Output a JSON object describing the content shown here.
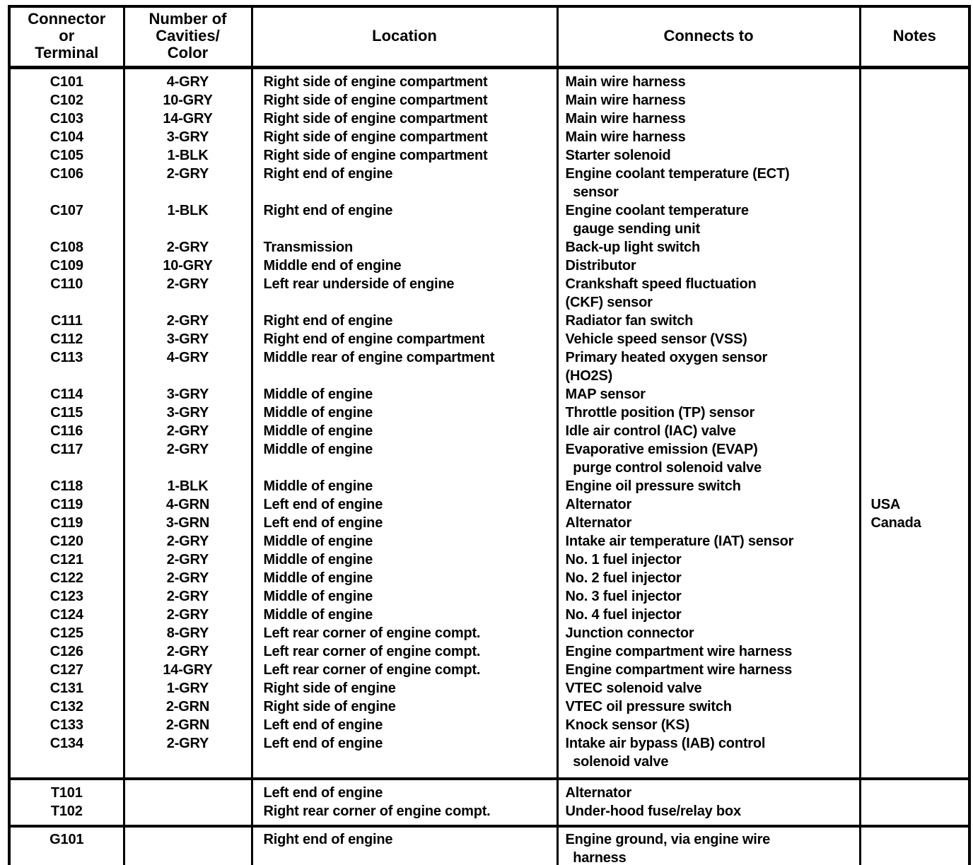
{
  "document": {
    "type": "connector-location-table"
  },
  "header": {
    "columns": [
      "Connector\nor\nTerminal",
      "Number of\nCavities/\nColor",
      "Location",
      "Connects to",
      "Notes"
    ]
  },
  "sections": [
    {
      "id": "connectors",
      "rows": [
        {
          "connector": "C101",
          "cavities": "4-GRY",
          "location": "Right side of engine compartment",
          "connects_to": "Main wire harness",
          "notes": ""
        },
        {
          "connector": "C102",
          "cavities": "10-GRY",
          "location": "Right side of engine compartment",
          "connects_to": "Main wire harness",
          "notes": ""
        },
        {
          "connector": "C103",
          "cavities": "14-GRY",
          "location": "Right side of engine compartment",
          "connects_to": "Main wire harness",
          "notes": ""
        },
        {
          "connector": "C104",
          "cavities": "3-GRY",
          "location": "Right side of engine compartment",
          "connects_to": "Main wire harness",
          "notes": ""
        },
        {
          "connector": "C105",
          "cavities": "1-BLK",
          "location": "Right side of engine compartment",
          "connects_to": "Starter solenoid",
          "notes": ""
        },
        {
          "connector": "C106",
          "cavities": "2-GRY",
          "location": "Right end of engine",
          "connects_to": "Engine coolant temperature (ECT)\n  sensor",
          "notes": ""
        },
        {
          "connector": "C107",
          "cavities": "1-BLK",
          "location": "Right end of engine",
          "connects_to": "Engine coolant temperature\n  gauge sending unit",
          "notes": ""
        },
        {
          "connector": "C108",
          "cavities": "2-GRY",
          "location": "Transmission",
          "connects_to": "Back-up light switch",
          "notes": ""
        },
        {
          "connector": "C109",
          "cavities": "10-GRY",
          "location": "Middle end of engine",
          "connects_to": "Distributor",
          "notes": ""
        },
        {
          "connector": "C110",
          "cavities": "2-GRY",
          "location": "Left rear underside of engine",
          "connects_to": "Crankshaft speed fluctuation\n(CKF) sensor",
          "notes": ""
        },
        {
          "connector": "C111",
          "cavities": "2-GRY",
          "location": "Right end of engine",
          "connects_to": "Radiator fan switch",
          "notes": ""
        },
        {
          "connector": "C112",
          "cavities": "3-GRY",
          "location": "Right end of engine compartment",
          "connects_to": "Vehicle speed sensor (VSS)",
          "notes": ""
        },
        {
          "connector": "C113",
          "cavities": "4-GRY",
          "location": "Middle rear of engine compartment",
          "connects_to": "Primary heated oxygen sensor\n(HO2S)",
          "notes": ""
        },
        {
          "connector": "C114",
          "cavities": "3-GRY",
          "location": "Middle of engine",
          "connects_to": "MAP sensor",
          "notes": ""
        },
        {
          "connector": "C115",
          "cavities": "3-GRY",
          "location": "Middle of engine",
          "connects_to": "Throttle position (TP) sensor",
          "notes": ""
        },
        {
          "connector": "C116",
          "cavities": "2-GRY",
          "location": "Middle of engine",
          "connects_to": "Idle air control (IAC) valve",
          "notes": ""
        },
        {
          "connector": "C117",
          "cavities": "2-GRY",
          "location": "Middle of engine",
          "connects_to": "Evaporative emission (EVAP)\n  purge control solenoid valve",
          "notes": ""
        },
        {
          "connector": "C118",
          "cavities": "1-BLK",
          "location": "Middle of engine",
          "connects_to": "Engine oil pressure switch",
          "notes": ""
        },
        {
          "connector": "C119",
          "cavities": "4-GRN",
          "location": "Left end of engine",
          "connects_to": "Alternator",
          "notes": "USA"
        },
        {
          "connector": "C119",
          "cavities": "3-GRN",
          "location": "Left end of engine",
          "connects_to": "Alternator",
          "notes": "Canada"
        },
        {
          "connector": "C120",
          "cavities": "2-GRY",
          "location": "Middle of engine",
          "connects_to": "Intake air temperature (IAT) sensor",
          "notes": ""
        },
        {
          "connector": "C121",
          "cavities": "2-GRY",
          "location": "Middle of engine",
          "connects_to": "No. 1 fuel injector",
          "notes": ""
        },
        {
          "connector": "C122",
          "cavities": "2-GRY",
          "location": "Middle of engine",
          "connects_to": "No. 2 fuel injector",
          "notes": ""
        },
        {
          "connector": "C123",
          "cavities": "2-GRY",
          "location": "Middle of engine",
          "connects_to": "No. 3 fuel injector",
          "notes": ""
        },
        {
          "connector": "C124",
          "cavities": "2-GRY",
          "location": "Middle of engine",
          "connects_to": "No. 4 fuel injector",
          "notes": ""
        },
        {
          "connector": "C125",
          "cavities": "8-GRY",
          "location": "Left rear corner of engine compt.",
          "connects_to": "Junction connector",
          "notes": ""
        },
        {
          "connector": "C126",
          "cavities": "2-GRY",
          "location": "Left rear corner of engine compt.",
          "connects_to": "Engine compartment wire harness",
          "notes": ""
        },
        {
          "connector": "C127",
          "cavities": "14-GRY",
          "location": "Left rear corner of engine compt.",
          "connects_to": "Engine compartment wire harness",
          "notes": ""
        },
        {
          "connector": "C131",
          "cavities": "1-GRY",
          "location": "Right side of engine",
          "connects_to": "VTEC solenoid valve",
          "notes": ""
        },
        {
          "connector": "C132",
          "cavities": "2-GRN",
          "location": "Right side of engine",
          "connects_to": "VTEC oil pressure switch",
          "notes": ""
        },
        {
          "connector": "C133",
          "cavities": "2-GRN",
          "location": "Left end of engine",
          "connects_to": "Knock sensor (KS)",
          "notes": ""
        },
        {
          "connector": "C134",
          "cavities": "2-GRY",
          "location": "Left end of engine",
          "connects_to": "Intake air bypass (IAB) control\n  solenoid valve",
          "notes": ""
        }
      ]
    },
    {
      "id": "terminals",
      "rows": [
        {
          "connector": "T101",
          "cavities": "",
          "location": "Left end of engine",
          "connects_to": "Alternator",
          "notes": ""
        },
        {
          "connector": "T102",
          "cavities": "",
          "location": "Right rear corner of engine compt.",
          "connects_to": "Under-hood fuse/relay box",
          "notes": ""
        }
      ]
    },
    {
      "id": "grounds",
      "rows": [
        {
          "connector": "G101",
          "cavities": "",
          "location": "Right end of engine",
          "connects_to": "Engine ground, via engine wire\n  harness",
          "notes": ""
        }
      ]
    }
  ],
  "colors": {
    "ink": "#000000",
    "paper": "#ffffff"
  }
}
